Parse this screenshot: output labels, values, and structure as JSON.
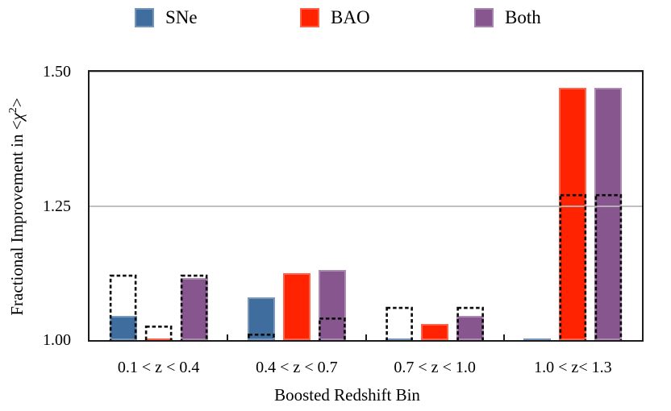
{
  "figure": {
    "background": "#ffffff",
    "frame_color": "#1c1c1c",
    "gridline_color": "#b9b9b9",
    "dashed_outline_color": "#0a0a0a",
    "legend": {
      "position": "top",
      "items": [
        {
          "label": "SNe",
          "color": "#3E6D9E"
        },
        {
          "label": "BAO",
          "color": "#FF2301"
        },
        {
          "label": "Both",
          "color": "#87568F"
        }
      ]
    }
  },
  "chart_data": {
    "type": "bar",
    "title": "",
    "xlabel": "Boosted Redshift Bin",
    "ylabel": "Fractional Improvement in <χ²>",
    "ylabel_parts": {
      "pre": "Fractional Improvement in <",
      "symbol": "χ",
      "superscript": "2",
      "post": ">"
    },
    "categories": [
      "0.1 < z < 0.4",
      "0.4 < z < 0.7",
      "0.7 < z < 1.0",
      "1.0 < z< 1.3"
    ],
    "ylim": [
      1.0,
      1.5
    ],
    "yticks": [
      {
        "value": 1.0,
        "label": "1.00"
      },
      {
        "value": 1.25,
        "label": "1.25"
      },
      {
        "value": 1.5,
        "label": "1.50"
      }
    ],
    "gridlines": [
      1.25,
      1.5
    ],
    "grid": "horizontal-major, drawn over bars",
    "legend_position": "above plot",
    "series": [
      {
        "name": "SNe",
        "color": "#3E6D9E",
        "values": [
          1.045,
          1.08,
          1.002,
          1.002
        ]
      },
      {
        "name": "BAO",
        "color": "#FF2301",
        "values": [
          1.003,
          1.125,
          1.03,
          1.47
        ]
      },
      {
        "name": "Both",
        "color": "#87568F",
        "values": [
          1.115,
          1.13,
          1.045,
          1.47
        ]
      }
    ],
    "dashed_outline_series": [
      {
        "name": "SNe dashed outline",
        "values": [
          1.12,
          1.01,
          1.06,
          1.0
        ]
      },
      {
        "name": "BAO dashed outline",
        "values": [
          1.025,
          1.0,
          1.0,
          1.27
        ]
      },
      {
        "name": "Both dashed outline",
        "values": [
          1.12,
          1.04,
          1.06,
          1.27
        ]
      }
    ]
  }
}
